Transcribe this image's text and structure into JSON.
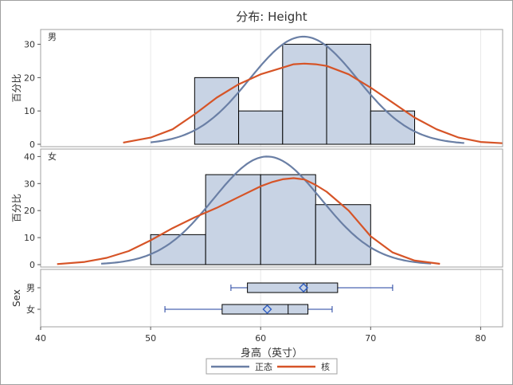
{
  "title": "分布: Height",
  "chart_data": {
    "type": "histogram",
    "title": "分布: Height",
    "xlabel": "身高（英寸）",
    "xlim": [
      40,
      82
    ],
    "xticks": [
      40,
      50,
      60,
      70,
      80
    ],
    "panels": [
      {
        "label": "男",
        "ylabel": "百分比",
        "ylim": [
          0,
          33
        ],
        "yticks": [
          0,
          10,
          20,
          30
        ],
        "bins": [
          {
            "start": 54,
            "end": 58,
            "value": 20
          },
          {
            "start": 58,
            "end": 62,
            "value": 10
          },
          {
            "start": 62,
            "end": 66,
            "value": 30
          },
          {
            "start": 66,
            "end": 70,
            "value": 30
          },
          {
            "start": 70,
            "end": 74,
            "value": 10
          }
        ],
        "normal": {
          "mean": 63.9,
          "peak": 32.3,
          "x": [
            50,
            78.5
          ]
        },
        "kernel": {
          "x": [
            47.5,
            50,
            52,
            54,
            56,
            58,
            60,
            62,
            63,
            64,
            65,
            66,
            68,
            70,
            72,
            74,
            76,
            78,
            80,
            82
          ],
          "y": [
            0.5,
            2,
            4.5,
            9,
            14,
            18,
            21,
            23,
            24,
            24.2,
            24,
            23.5,
            21,
            17,
            12.5,
            8,
            4.5,
            2,
            0.7,
            0.3
          ]
        }
      },
      {
        "label": "女",
        "ylabel": "百分比",
        "ylim": [
          0,
          41
        ],
        "yticks": [
          0,
          10,
          20,
          30,
          40
        ],
        "bins": [
          {
            "start": 50,
            "end": 55,
            "value": 11.1
          },
          {
            "start": 55,
            "end": 60,
            "value": 33.3
          },
          {
            "start": 60,
            "end": 65,
            "value": 33.3
          },
          {
            "start": 65,
            "end": 70,
            "value": 22.2
          }
        ],
        "normal": {
          "mean": 60.6,
          "peak": 40,
          "x": [
            45.5,
            75.5
          ]
        },
        "kernel": {
          "x": [
            41.5,
            44,
            46,
            48,
            50,
            52,
            54,
            56,
            58,
            60,
            61,
            62,
            63,
            64,
            65,
            66,
            68,
            70,
            72,
            74,
            76.3
          ],
          "y": [
            0.2,
            1,
            2.5,
            5,
            9,
            13.5,
            17.5,
            21,
            25,
            29,
            30.5,
            31.6,
            32,
            31.5,
            29.5,
            27,
            20,
            10.5,
            4.5,
            1.5,
            0.3
          ]
        }
      }
    ],
    "boxplot": {
      "ylabel": "Sex",
      "categories": [
        {
          "label": "男",
          "min": 57.3,
          "q1": 58.8,
          "median": 64.2,
          "q3": 67,
          "max": 72,
          "mean": 63.9
        },
        {
          "label": "女",
          "min": 51.3,
          "q1": 56.5,
          "median": 62.5,
          "q3": 64.3,
          "max": 66.5,
          "mean": 60.6
        }
      ]
    },
    "legend": [
      {
        "name": "正态",
        "color": "#6a7fa5"
      },
      {
        "name": "核",
        "color": "#d65427"
      }
    ],
    "colors": {
      "bar_fill": "#c8d3e4",
      "box_line": "#1f3f9f",
      "mean_marker": "#2f5ec2"
    }
  }
}
